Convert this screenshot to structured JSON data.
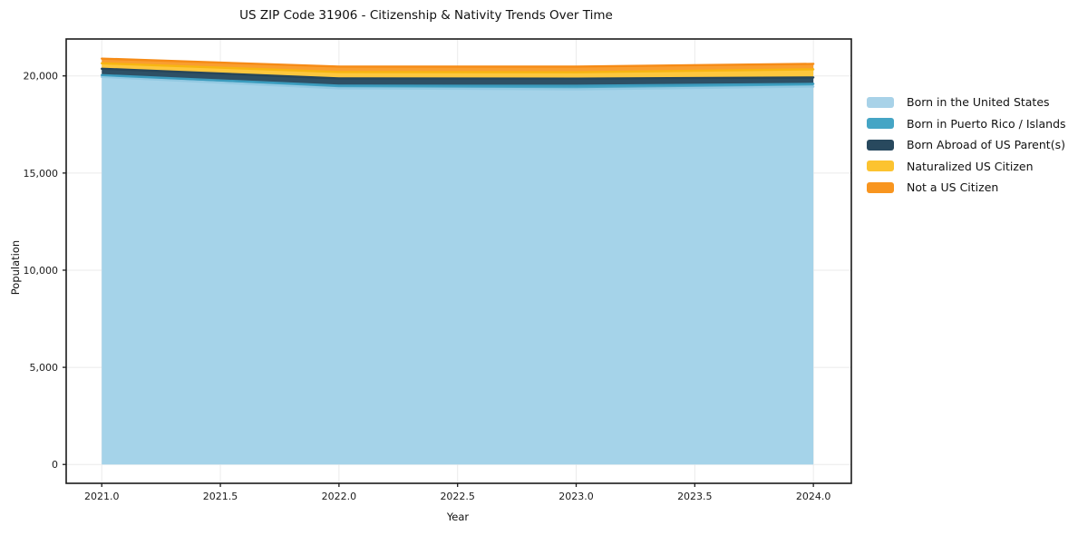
{
  "title": "US ZIP Code 31906 - Citizenship & Nativity Trends Over Time",
  "chart_data": {
    "type": "area",
    "stacked": true,
    "title": "US ZIP Code 31906 - Citizenship & Nativity Trends Over Time",
    "xlabel": "Year",
    "ylabel": "Population",
    "x": [
      2021,
      2022,
      2023,
      2024
    ],
    "xticks": [
      2021.0,
      2021.5,
      2022.0,
      2022.5,
      2023.0,
      2023.5,
      2024.0
    ],
    "yticks": [
      0,
      5000,
      10000,
      15000,
      20000
    ],
    "xlim": [
      2020.85,
      2024.16
    ],
    "ylim": [
      -970,
      21900
    ],
    "grid": true,
    "legend_position": "right-outside",
    "series": [
      {
        "key": "born-us",
        "name": "Born in the United States",
        "values": [
          19950,
          19360,
          19310,
          19450
        ],
        "color": "#a5d3e9",
        "line": "#93c9e2"
      },
      {
        "key": "born-pr-islands",
        "name": "Born in Puerto Rico / Islands",
        "values": [
          90,
          140,
          180,
          140
        ],
        "color": "#4fa8c6",
        "line": "#3b9cbe"
      },
      {
        "key": "born-abroad",
        "name": "Born Abroad of US Parent(s)",
        "values": [
          330,
          370,
          370,
          330
        ],
        "color": "#2e5065",
        "line": "#27465a"
      },
      {
        "key": "naturalized",
        "name": "Naturalized US Citizen",
        "values": [
          280,
          330,
          330,
          420
        ],
        "color": "#fdc73d",
        "line": "#f7b512"
      },
      {
        "key": "not-citizen",
        "name": "Not a US Citizen",
        "values": [
          240,
          280,
          290,
          280
        ],
        "color": "#f99e30",
        "line": "#f68b16"
      }
    ],
    "legend_swatch_colors": [
      "#a8d2e8",
      "#45a5c5",
      "#28495e",
      "#fcc330",
      "#f8951f"
    ],
    "colors": {
      "grid": "#ebebeb",
      "spine": "#1b1b1b",
      "tick_text": "#1b1b1b",
      "background": "#ffffff"
    }
  }
}
